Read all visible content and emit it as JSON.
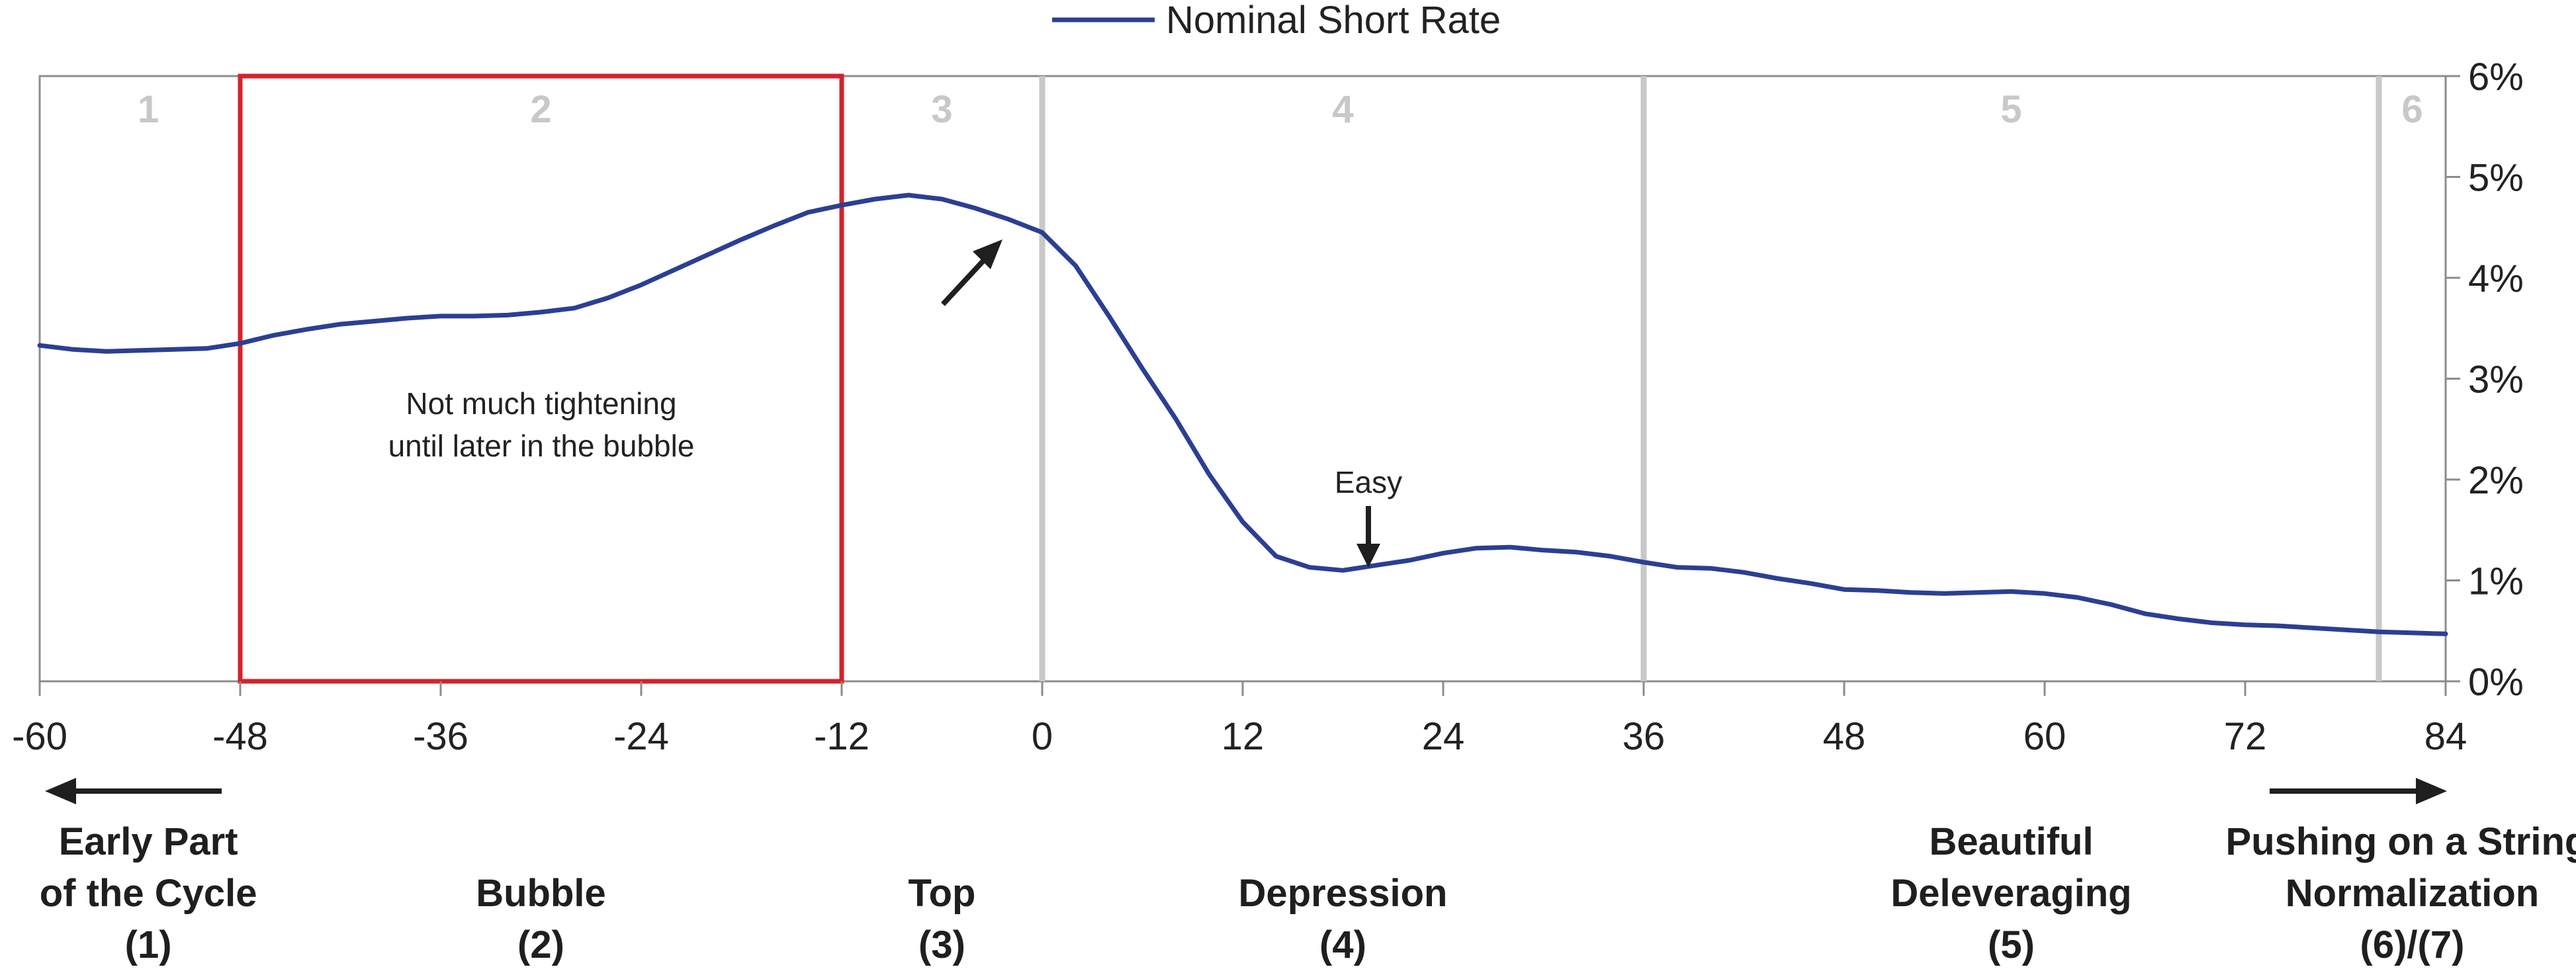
{
  "chart_data": {
    "type": "line",
    "legend": {
      "entries": [
        "Nominal Short Rate"
      ],
      "placement": "top-center"
    },
    "series": [
      {
        "name": "Nominal Short Rate",
        "color": "#2b3f93",
        "x": [
          -60,
          -58,
          -56,
          -54,
          -52,
          -50,
          -48,
          -46,
          -44,
          -42,
          -40,
          -38,
          -36,
          -34,
          -32,
          -30,
          -28,
          -26,
          -24,
          -22,
          -20,
          -18,
          -16,
          -14,
          -12,
          -10,
          -8,
          -6,
          -4,
          -2,
          0,
          2,
          4,
          6,
          8,
          10,
          12,
          14,
          16,
          18,
          20,
          22,
          24,
          26,
          28,
          30,
          32,
          34,
          36,
          38,
          40,
          42,
          44,
          46,
          48,
          50,
          52,
          54,
          56,
          58,
          60,
          62,
          64,
          66,
          68,
          70,
          72,
          74,
          76,
          78,
          80,
          82,
          84
        ],
        "values": [
          3.33,
          3.29,
          3.27,
          3.28,
          3.29,
          3.3,
          3.35,
          3.43,
          3.49,
          3.54,
          3.57,
          3.6,
          3.62,
          3.62,
          3.63,
          3.66,
          3.7,
          3.8,
          3.93,
          4.08,
          4.23,
          4.38,
          4.52,
          4.65,
          4.72,
          4.78,
          4.82,
          4.78,
          4.69,
          4.58,
          4.45,
          4.12,
          3.62,
          3.1,
          2.6,
          2.05,
          1.58,
          1.24,
          1.13,
          1.1,
          1.15,
          1.2,
          1.27,
          1.32,
          1.33,
          1.3,
          1.28,
          1.24,
          1.18,
          1.13,
          1.12,
          1.08,
          1.02,
          0.97,
          0.91,
          0.9,
          0.88,
          0.87,
          0.88,
          0.89,
          0.87,
          0.83,
          0.76,
          0.67,
          0.62,
          0.58,
          0.56,
          0.55,
          0.53,
          0.51,
          0.49,
          0.48,
          0.47
        ]
      }
    ],
    "x_axis": {
      "ticks": [
        "-60",
        "-48",
        "-36",
        "-24",
        "-12",
        "0",
        "12",
        "24",
        "36",
        "48",
        "60",
        "72",
        "84"
      ],
      "xlim": [
        -60,
        84
      ]
    },
    "y_axis": {
      "ticks": [
        "0%",
        "1%",
        "2%",
        "3%",
        "4%",
        "5%",
        "6%"
      ],
      "ylim": [
        0,
        6
      ],
      "position": "right"
    },
    "phase_dividers": [
      0,
      36,
      80
    ],
    "phases": [
      {
        "num": "1",
        "x": -53.5,
        "label": [
          "Early Part",
          "of the Cycle",
          "(1)"
        ]
      },
      {
        "num": "2",
        "x": -30,
        "label": [
          "Bubble",
          "(2)"
        ]
      },
      {
        "num": "3",
        "x": -6,
        "label": [
          "Top",
          "(3)"
        ]
      },
      {
        "num": "4",
        "x": 18,
        "label": [
          "Depression",
          "(4)"
        ]
      },
      {
        "num": "5",
        "x": 58,
        "label": [
          "Beautiful",
          "Deleveraging",
          "(5)"
        ]
      },
      {
        "num": "6",
        "x": 82,
        "label": [
          "Pushing on a String/",
          "Normalization",
          "(6)/(7)"
        ]
      }
    ],
    "highlight_box": {
      "x_start": -48,
      "x_end": -12,
      "color": "#d4232b"
    },
    "annotations": [
      {
        "lines": [
          "Not much tightening",
          "until later in the bubble"
        ]
      },
      {
        "text": "Easy"
      }
    ],
    "grid": false
  }
}
